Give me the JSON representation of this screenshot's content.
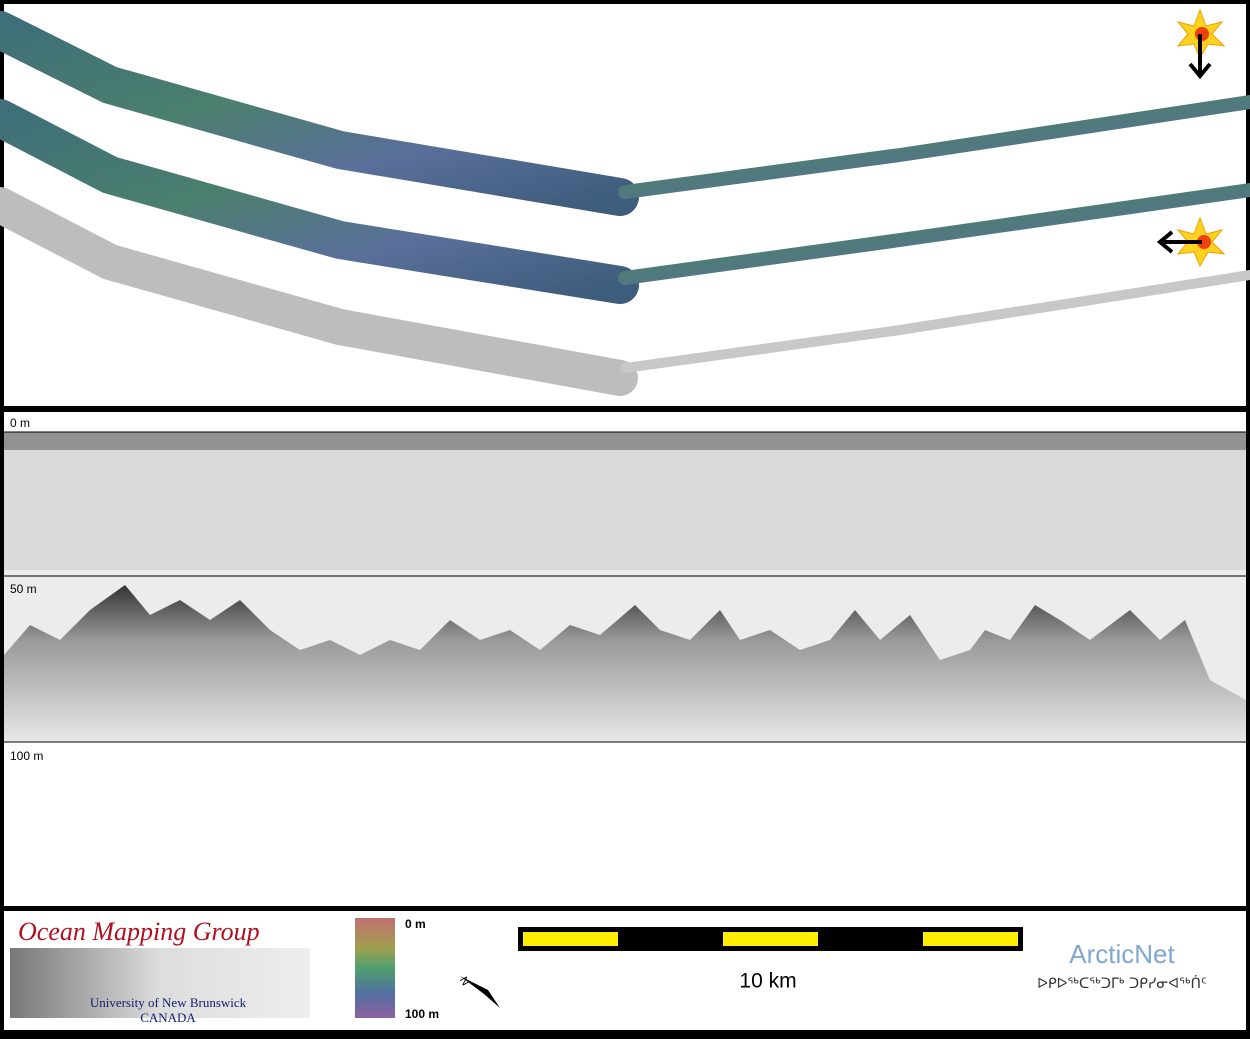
{
  "profile": {
    "depth_labels": [
      "0 m",
      "50 m",
      "100 m"
    ]
  },
  "footer": {
    "logo_title": "Ocean Mapping Group",
    "logo_university": "University of New Brunswick",
    "logo_country": "CANADA",
    "colorbar_labels": [
      "0 m",
      "100 m"
    ],
    "compass_label": "N",
    "scale_label": "10 km",
    "partner_name": "ArcticNet",
    "partner_syllabics": "ᐅᑭᐅᖅᑕᖅᑐᒥᒃ ᑐᑭᓯᓂᐊᖅᑏᑦ"
  }
}
